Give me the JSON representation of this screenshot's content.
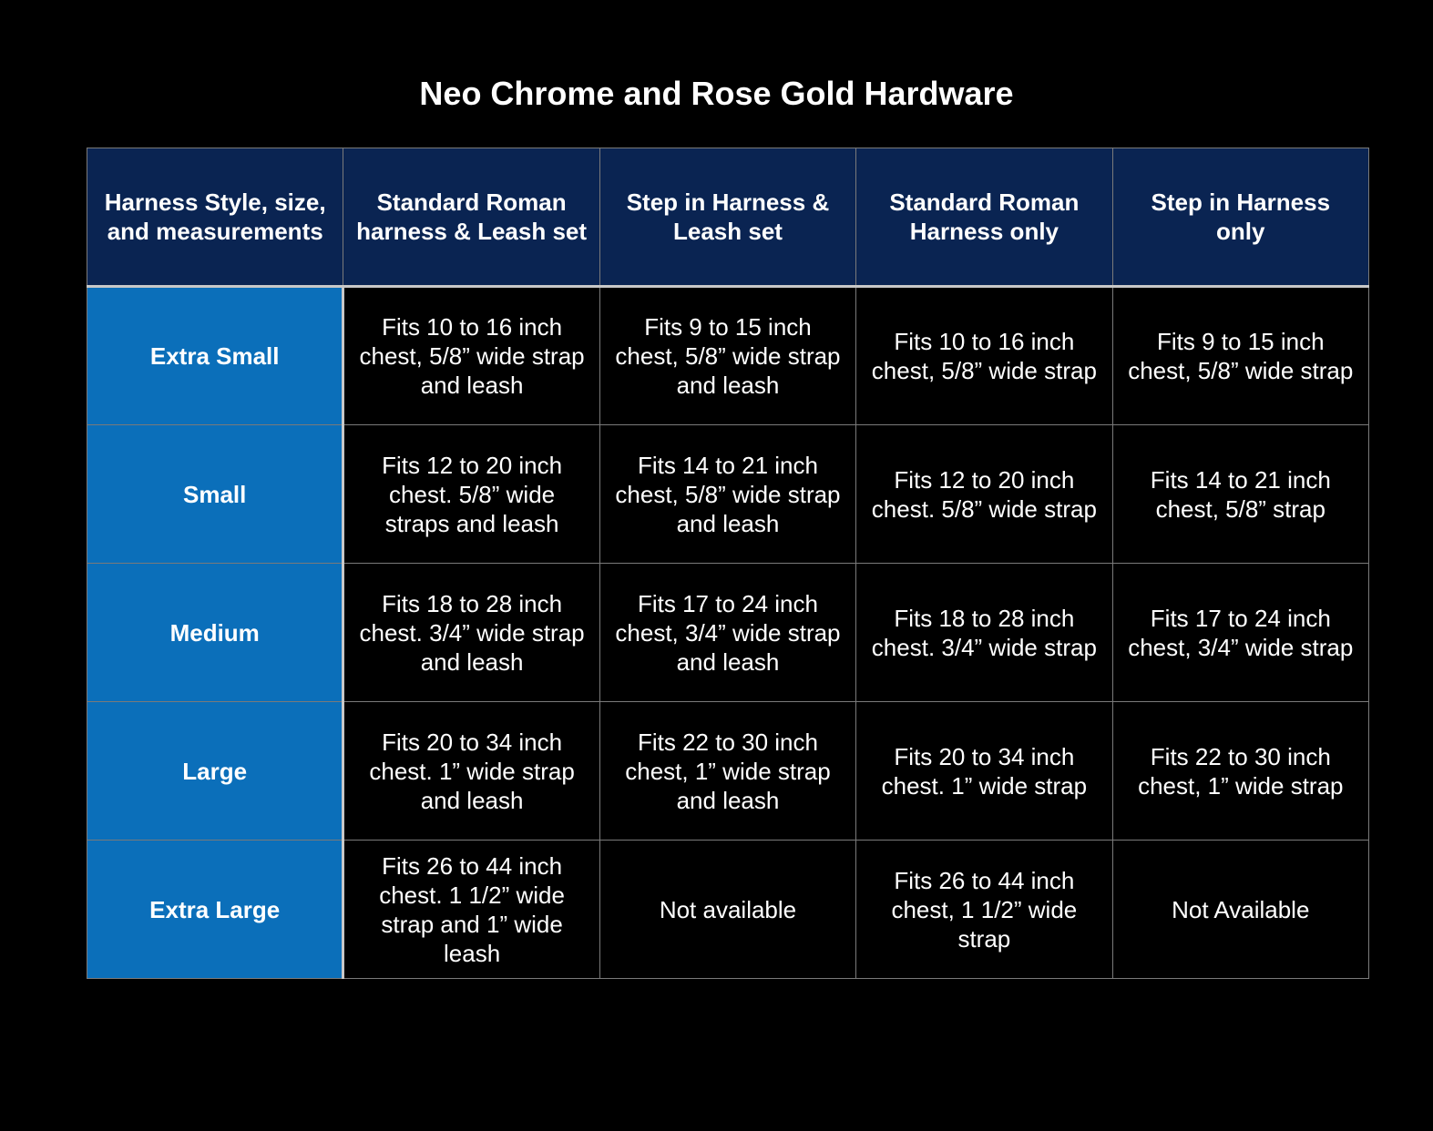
{
  "title": "Neo Chrome and Rose Gold Hardware",
  "table": {
    "header": [
      "Harness Style, size, and measurements",
      "Standard Roman harness & Leash set",
      "Step in Harness & Leash set",
      "Standard Roman Harness only",
      "Step in Harness only"
    ],
    "rows": [
      [
        "Extra Small",
        "Fits 10 to 16 inch chest, 5/8” wide strap and leash",
        "Fits 9 to 15 inch chest, 5/8” wide strap and leash",
        "Fits 10 to 16 inch chest, 5/8” wide strap",
        "Fits 9 to 15 inch chest, 5/8” wide strap"
      ],
      [
        "Small",
        "Fits 12 to 20 inch chest. 5/8” wide straps and leash",
        "Fits 14 to 21 inch chest, 5/8” wide strap and leash",
        "Fits 12 to 20 inch chest. 5/8” wide strap",
        "Fits 14 to 21 inch chest, 5/8” strap"
      ],
      [
        "Medium",
        "Fits 18 to 28 inch chest. 3/4” wide strap and leash",
        "Fits 17 to 24 inch chest, 3/4” wide strap and leash",
        "Fits 18 to 28 inch chest. 3/4” wide strap",
        "Fits 17 to 24 inch chest, 3/4” wide strap"
      ],
      [
        "Large",
        "Fits 20 to 34 inch chest. 1” wide strap and leash",
        "Fits 22 to 30 inch chest, 1” wide strap and leash",
        "Fits 20 to 34 inch chest. 1” wide strap",
        "Fits 22 to 30 inch chest, 1” wide strap"
      ],
      [
        "Extra Large",
        "Fits 26 to 44 inch chest. 1 1/2” wide strap and 1” wide leash",
        "Not available",
        "Fits 26 to 44 inch chest, 1 1/2” wide strap",
        "Not Available"
      ]
    ]
  }
}
